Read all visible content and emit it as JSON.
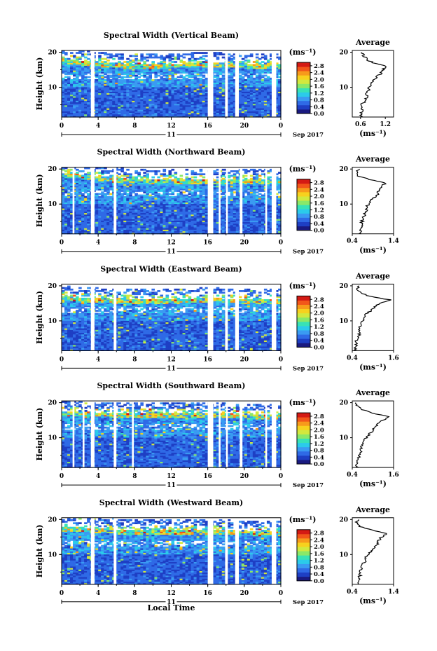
{
  "figure": {
    "xlabel": "Local Time"
  },
  "colorbar": {
    "unit": "(ms⁻¹)",
    "ticks": [
      "0.0",
      "0.4",
      "0.8",
      "1.2",
      "1.6",
      "2.0",
      "2.4",
      "2.8"
    ],
    "colors": [
      "#1a1a80",
      "#1e3fc4",
      "#2f6ae6",
      "#3a9bf2",
      "#2bcbea",
      "#38e2b6",
      "#8ae868",
      "#d2e83e",
      "#f7d11e",
      "#f79a1b",
      "#f2561a",
      "#d41a14"
    ]
  },
  "panels": [
    {
      "title": "Spectral Width (Vertical Beam)",
      "avg_title": "Average",
      "avg_xlabel": "(ms⁻¹)",
      "avg_ticks": [
        "0.6",
        "1.2"
      ]
    },
    {
      "title": "Spectral Width (Northward Beam)",
      "avg_title": "Average",
      "avg_xlabel": "(ms⁻¹)",
      "avg_ticks": [
        "0.4",
        "1.4"
      ]
    },
    {
      "title": "Spectral Width (Eastward Beam)",
      "avg_title": "Average",
      "avg_xlabel": "(ms⁻¹)",
      "avg_ticks": [
        "0.4",
        "1.6"
      ]
    },
    {
      "title": "Spectral Width (Southward Beam)",
      "avg_title": "Average",
      "avg_xlabel": "(ms⁻¹)",
      "avg_ticks": [
        "0.4",
        "1.6"
      ]
    },
    {
      "title": "Spectral Width (Westward Beam)",
      "avg_title": "Average",
      "avg_xlabel": "(ms⁻¹)",
      "avg_ticks": [
        "0.4",
        "1.4"
      ]
    }
  ],
  "chart_data": [
    {
      "type": "heatmap",
      "title": "Spectral Width (Vertical Beam)",
      "xlabel": "",
      "ylabel": "Height (km)",
      "x_ticks": [
        "0",
        "4",
        "8",
        "12",
        "16",
        "20",
        "0"
      ],
      "x_day": "11",
      "x_date": "Sep 2017",
      "y_ticks": [
        "10",
        "20"
      ],
      "xlim": [
        0,
        24
      ],
      "ylim": [
        1.5,
        20.5
      ],
      "gaps_hours": [
        [
          3.2,
          3.6
        ],
        [
          16.0,
          16.6
        ],
        [
          17.9,
          18.2
        ],
        [
          19.0,
          19.4
        ],
        [
          23.0,
          23.5
        ]
      ],
      "upper_limit_km": [
        [
          0,
          18
        ],
        [
          8,
          16.5
        ],
        [
          16,
          17
        ],
        [
          24,
          16.5
        ]
      ],
      "avg_profile": {
        "xlim": [
          0.4,
          1.4
        ],
        "height_km": [
          1.5,
          2,
          3,
          4,
          5,
          6,
          7,
          8,
          9,
          10,
          11,
          12,
          13,
          14,
          15,
          16,
          17,
          18,
          19,
          20
        ],
        "width": [
          0.62,
          0.6,
          0.63,
          0.65,
          0.62,
          0.7,
          0.74,
          0.75,
          0.78,
          0.82,
          0.84,
          0.92,
          1.0,
          1.1,
          1.15,
          1.22,
          0.9,
          0.75,
          0.68,
          0.62
        ]
      }
    },
    {
      "type": "heatmap",
      "title": "Spectral Width (Northward Beam)",
      "xlabel": "",
      "ylabel": "Height (km)",
      "x_ticks": [
        "0",
        "4",
        "8",
        "12",
        "16",
        "20",
        "0"
      ],
      "x_day": "11",
      "x_date": "Sep 2017",
      "y_ticks": [
        "10",
        "20"
      ],
      "xlim": [
        0,
        24
      ],
      "ylim": [
        1.5,
        20.5
      ],
      "gaps_hours": [
        [
          1.2,
          1.4
        ],
        [
          3.2,
          3.6
        ],
        [
          5.7,
          6.0
        ],
        [
          16.0,
          16.6
        ],
        [
          17.2,
          17.4
        ],
        [
          18.0,
          18.2
        ],
        [
          19.5,
          19.8
        ],
        [
          22.3,
          22.5
        ],
        [
          23.0,
          23.5
        ]
      ],
      "upper_limit_km": [
        [
          0,
          19
        ],
        [
          8,
          17
        ],
        [
          16,
          17
        ],
        [
          24,
          17
        ]
      ],
      "avg_profile": {
        "xlim": [
          0.4,
          1.4
        ],
        "height_km": [
          1.5,
          2,
          3,
          4,
          5,
          6,
          7,
          8,
          9,
          10,
          11,
          12,
          13,
          14,
          15,
          16,
          17,
          18,
          19,
          20
        ],
        "width": [
          0.62,
          0.58,
          0.6,
          0.62,
          0.64,
          0.66,
          0.7,
          0.74,
          0.76,
          0.78,
          0.86,
          0.95,
          1.02,
          1.05,
          1.1,
          1.2,
          0.8,
          0.55,
          0.5,
          0.58
        ]
      }
    },
    {
      "type": "heatmap",
      "title": "Spectral Width (Eastward Beam)",
      "xlabel": "",
      "ylabel": "Height (km)",
      "x_ticks": [
        "0",
        "4",
        "8",
        "12",
        "16",
        "20",
        "0"
      ],
      "x_day": "11",
      "x_date": "Sep 2017",
      "y_ticks": [
        "10",
        "20"
      ],
      "xlim": [
        0,
        24
      ],
      "ylim": [
        1.5,
        20.5
      ],
      "gaps_hours": [
        [
          3.2,
          3.6
        ],
        [
          5.7,
          6.0
        ],
        [
          16.0,
          16.6
        ],
        [
          17.9,
          18.2
        ],
        [
          19.0,
          19.4
        ],
        [
          23.0,
          23.5
        ]
      ],
      "upper_limit_km": [
        [
          0,
          17
        ],
        [
          8,
          16
        ],
        [
          16,
          16.5
        ],
        [
          24,
          16
        ]
      ],
      "avg_profile": {
        "xlim": [
          0.4,
          1.6
        ],
        "height_km": [
          1.5,
          2,
          3,
          4,
          5,
          6,
          7,
          8,
          9,
          10,
          11,
          12,
          13,
          14,
          15,
          16,
          17,
          18,
          19,
          20
        ],
        "width": [
          0.5,
          0.48,
          0.52,
          0.5,
          0.55,
          0.6,
          0.62,
          0.6,
          0.65,
          0.7,
          0.75,
          0.8,
          0.95,
          1.05,
          1.2,
          1.5,
          0.9,
          0.65,
          0.55,
          0.6
        ]
      }
    },
    {
      "type": "heatmap",
      "title": "Spectral Width (Southward Beam)",
      "xlabel": "",
      "ylabel": "Height (km)",
      "x_ticks": [
        "0",
        "4",
        "8",
        "12",
        "16",
        "20",
        "0"
      ],
      "x_day": "11",
      "x_date": "Sep 2017",
      "y_ticks": [
        "10",
        "20"
      ],
      "xlim": [
        0,
        24
      ],
      "ylim": [
        1.5,
        20.5
      ],
      "gaps_hours": [
        [
          1.2,
          1.4
        ],
        [
          2.3,
          2.5
        ],
        [
          3.2,
          3.6
        ],
        [
          5.7,
          6.0
        ],
        [
          7.7,
          7.9
        ],
        [
          16.0,
          16.6
        ],
        [
          17.2,
          17.4
        ],
        [
          18.0,
          18.2
        ],
        [
          19.5,
          19.8
        ],
        [
          22.3,
          22.5
        ],
        [
          23.0,
          23.5
        ]
      ],
      "upper_limit_km": [
        [
          0,
          17.5
        ],
        [
          8,
          17
        ],
        [
          16,
          17
        ],
        [
          24,
          16.5
        ]
      ],
      "avg_profile": {
        "xlim": [
          0.4,
          1.6
        ],
        "height_km": [
          1.5,
          2,
          3,
          4,
          5,
          6,
          7,
          8,
          9,
          10,
          11,
          12,
          13,
          14,
          15,
          16,
          17,
          18,
          19,
          20
        ],
        "width": [
          0.55,
          0.52,
          0.55,
          0.58,
          0.6,
          0.64,
          0.66,
          0.7,
          0.74,
          0.8,
          0.9,
          1.0,
          1.05,
          1.15,
          1.3,
          1.45,
          1.0,
          0.7,
          0.55,
          0.5
        ]
      }
    },
    {
      "type": "heatmap",
      "title": "Spectral Width (Westward Beam)",
      "xlabel": "Local Time",
      "ylabel": "Height (km)",
      "x_ticks": [
        "0",
        "4",
        "8",
        "12",
        "16",
        "20",
        "0"
      ],
      "x_day": "11",
      "x_date": "Sep 2017",
      "y_ticks": [
        "10",
        "20"
      ],
      "xlim": [
        0,
        24
      ],
      "ylim": [
        1.5,
        20.5
      ],
      "gaps_hours": [
        [
          3.2,
          3.6
        ],
        [
          5.7,
          6.0
        ],
        [
          16.0,
          16.6
        ],
        [
          17.9,
          18.2
        ],
        [
          19.0,
          19.4
        ],
        [
          23.0,
          23.5
        ]
      ],
      "upper_limit_km": [
        [
          0,
          18
        ],
        [
          8,
          17
        ],
        [
          16,
          17
        ],
        [
          24,
          16.5
        ]
      ],
      "avg_profile": {
        "xlim": [
          0.4,
          1.4
        ],
        "height_km": [
          1.5,
          2,
          3,
          4,
          5,
          6,
          7,
          8,
          9,
          10,
          11,
          12,
          13,
          14,
          15,
          16,
          17,
          18,
          19,
          20
        ],
        "width": [
          0.55,
          0.52,
          0.56,
          0.58,
          0.6,
          0.62,
          0.65,
          0.7,
          0.72,
          0.78,
          0.85,
          0.92,
          1.0,
          1.05,
          1.1,
          1.25,
          0.85,
          0.6,
          0.5,
          0.55
        ]
      }
    }
  ]
}
